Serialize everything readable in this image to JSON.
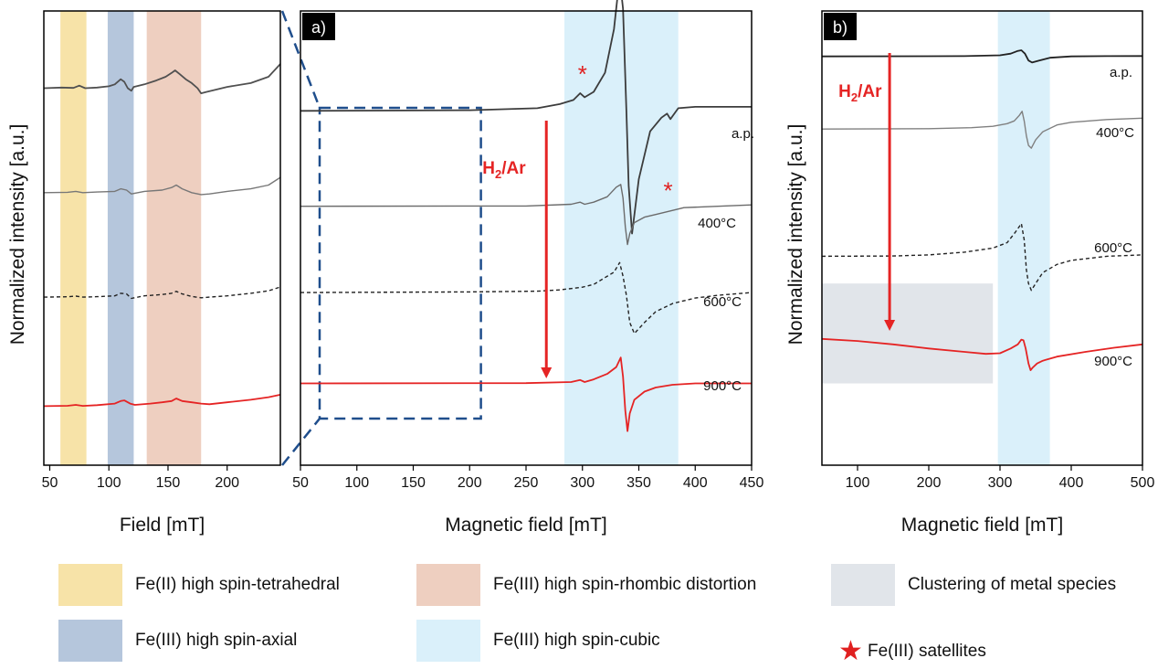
{
  "chart_data": [
    {
      "panel_label": "",
      "type": "line",
      "xlabel": "Field [mT]",
      "ylabel": "Normalized intensity [a.u.]",
      "xlim": [
        45,
        245
      ],
      "x_ticks": [
        50,
        100,
        150,
        200
      ],
      "y_ticks": "none",
      "grid": false,
      "bands": [
        {
          "from": 59,
          "to": 81,
          "color": "#f7e3a8",
          "class": "Fe(II) high spin-tetrahedral"
        },
        {
          "from": 99,
          "to": 121,
          "color": "#b5c6dc",
          "class": "Fe(III) high spin-axial"
        },
        {
          "from": 132,
          "to": 178,
          "color": "#eecfc0",
          "class": "Fe(III) high spin-rhombic distortion"
        }
      ],
      "series": [
        {
          "name": "a.p.",
          "style": "solid",
          "color": "#505050",
          "offset": 0.83,
          "x": [
            45,
            60,
            70,
            75,
            80,
            90,
            100,
            105,
            110,
            113,
            116,
            119,
            121,
            130,
            140,
            148,
            153,
            156,
            160,
            165,
            170,
            175,
            178,
            182,
            200,
            220,
            235,
            245
          ],
          "y": [
            0,
            0.005,
            0.002,
            0.02,
            0,
            0.005,
            0.015,
            0.03,
            0.07,
            0.05,
            0,
            -0.02,
            0.01,
            0.03,
            0.06,
            0.09,
            0.12,
            0.14,
            0.11,
            0.07,
            0.04,
            0.0,
            -0.04,
            -0.03,
            0.01,
            0.04,
            0.09,
            0.19
          ]
        },
        {
          "name": "400°C",
          "style": "solid",
          "color": "#777777",
          "offset": 0.6,
          "x": [
            45,
            65,
            72,
            78,
            90,
            105,
            110,
            115,
            119,
            130,
            145,
            153,
            157,
            162,
            170,
            178,
            185,
            200,
            220,
            235,
            245
          ],
          "y": [
            0,
            0.003,
            0.01,
            0,
            0.005,
            0.01,
            0.03,
            0.02,
            -0.01,
            0.01,
            0.02,
            0.04,
            0.06,
            0.03,
            0.0,
            -0.015,
            -0.01,
            0.01,
            0.03,
            0.06,
            0.12
          ]
        },
        {
          "name": "600°C",
          "style": "dashed",
          "color": "#222222",
          "offset": 0.37,
          "x": [
            45,
            65,
            72,
            78,
            90,
            105,
            110,
            115,
            119,
            130,
            145,
            153,
            157,
            162,
            170,
            178,
            185,
            200,
            220,
            235,
            245
          ],
          "y": [
            0,
            0.003,
            0.008,
            0,
            0.004,
            0.01,
            0.03,
            0.025,
            -0.01,
            0.01,
            0.02,
            0.03,
            0.045,
            0.025,
            0.005,
            -0.005,
            0,
            0.01,
            0.03,
            0.05,
            0.08
          ]
        },
        {
          "name": "900°C",
          "style": "solid",
          "color": "#e52424",
          "offset": 0.13,
          "x": [
            45,
            65,
            72,
            78,
            90,
            105,
            110,
            113,
            118,
            122,
            135,
            145,
            153,
            157,
            162,
            170,
            178,
            185,
            200,
            220,
            235,
            245
          ],
          "y": [
            0,
            0.003,
            0.01,
            0.002,
            0.008,
            0.02,
            0.04,
            0.045,
            0.02,
            0.01,
            0.02,
            0.03,
            0.04,
            0.06,
            0.04,
            0.03,
            0.02,
            0.015,
            0.03,
            0.05,
            0.07,
            0.09
          ]
        }
      ]
    },
    {
      "panel_label": "a)",
      "type": "line",
      "xlabel": "Magnetic field [mT]",
      "xlim": [
        50,
        450
      ],
      "x_ticks": [
        50,
        100,
        150,
        200,
        250,
        300,
        350,
        400,
        450
      ],
      "y_ticks": "none",
      "grid": false,
      "zoom_box": {
        "x_from": 67,
        "x_to": 210
      },
      "bands": [
        {
          "from": 284,
          "to": 385,
          "color": "#daf0fa",
          "class": "Fe(III) high spin-cubic"
        }
      ],
      "arrow": {
        "label": "H",
        "label_sub": "2",
        "label_suffix": "/Ar",
        "x": 268,
        "color": "#e52424"
      },
      "satellite_markers": [
        {
          "x": 300,
          "series": "a.p."
        },
        {
          "x": 376,
          "series": "400°C"
        }
      ],
      "series": [
        {
          "name": "a.p.",
          "label": "a.p.",
          "style": "solid",
          "color": "#3c3c3c",
          "offset": 0.78,
          "x": [
            50,
            200,
            260,
            280,
            292,
            298,
            302,
            310,
            320,
            328,
            333,
            336,
            339,
            341,
            344,
            350,
            360,
            370,
            375,
            378,
            385,
            400,
            420,
            450
          ],
          "y": [
            0,
            0.005,
            0.02,
            0.05,
            0.08,
            0.13,
            0.1,
            0.14,
            0.28,
            0.6,
            0.98,
            0.75,
            0.0,
            -0.55,
            -0.9,
            -0.5,
            -0.15,
            -0.05,
            -0.02,
            -0.06,
            0.02,
            0.03,
            0.03,
            0.03
          ]
        },
        {
          "name": "400°C",
          "label": "400°C",
          "style": "solid",
          "color": "#6b6b6b",
          "offset": 0.57,
          "x": [
            50,
            250,
            290,
            298,
            302,
            310,
            322,
            330,
            334,
            336,
            338,
            340,
            342,
            346,
            355,
            365,
            375,
            390,
            420,
            450
          ],
          "y": [
            0,
            0.002,
            0.015,
            0.03,
            0.015,
            0.03,
            0.07,
            0.14,
            0.16,
            0.06,
            -0.15,
            -0.28,
            -0.2,
            -0.12,
            -0.08,
            -0.06,
            -0.04,
            -0.01,
            0.0,
            0.01
          ]
        },
        {
          "name": "600°C",
          "label": "600°C",
          "style": "dashed",
          "color": "#222222",
          "offset": 0.38,
          "x": [
            50,
            200,
            260,
            280,
            300,
            310,
            320,
            328,
            333,
            336,
            339,
            342,
            346,
            355,
            365,
            380,
            400,
            420,
            450
          ],
          "y": [
            0,
            0.005,
            0.01,
            0.02,
            0.04,
            0.06,
            0.11,
            0.15,
            0.22,
            0.12,
            -0.02,
            -0.22,
            -0.3,
            -0.22,
            -0.14,
            -0.08,
            -0.04,
            -0.02,
            0.0
          ]
        },
        {
          "name": "900°C",
          "label": "900°C",
          "style": "solid",
          "color": "#e52424",
          "offset": 0.18,
          "x": [
            50,
            250,
            290,
            298,
            302,
            310,
            322,
            330,
            334,
            336,
            338,
            340,
            342,
            346,
            355,
            365,
            380,
            400,
            420,
            450
          ],
          "y": [
            0,
            0.002,
            0.01,
            0.025,
            0.01,
            0.03,
            0.07,
            0.12,
            0.19,
            0.05,
            -0.2,
            -0.35,
            -0.22,
            -0.12,
            -0.06,
            -0.03,
            -0.01,
            0.0,
            0.0,
            0.0
          ]
        }
      ]
    },
    {
      "panel_label": "b)",
      "type": "line",
      "xlabel": "Magnetic field [mT]",
      "ylabel": "Normalized intensity [a.u.]",
      "xlim": [
        50,
        500
      ],
      "x_ticks": [
        100,
        200,
        300,
        400,
        500
      ],
      "y_ticks": "none",
      "grid": false,
      "bands": [
        {
          "from": 297,
          "to": 370,
          "color": "#daf0fa",
          "class": "Fe(III) high spin-cubic"
        },
        {
          "from": 50,
          "to": 290,
          "color": "#e1e5ea",
          "class": "Clustering of metal species",
          "y_from": 0.18,
          "y_to": 0.4
        }
      ],
      "arrow": {
        "label": "H",
        "label_sub": "2",
        "label_suffix": "/Ar",
        "x": 145,
        "color": "#e52424"
      },
      "series": [
        {
          "name": "a.p.",
          "label": "a.p.",
          "style": "solid",
          "color": "#222222",
          "offset": 0.9,
          "x": [
            50,
            250,
            300,
            315,
            325,
            330,
            335,
            340,
            345,
            355,
            370,
            400,
            450,
            500
          ],
          "y": [
            0,
            0.002,
            0.008,
            0.02,
            0.04,
            0.045,
            0.02,
            -0.03,
            -0.045,
            -0.03,
            -0.01,
            0.0,
            0.002,
            0.003
          ]
        },
        {
          "name": "400°C",
          "label": "400°C",
          "style": "solid",
          "color": "#808080",
          "offset": 0.74,
          "x": [
            50,
            200,
            260,
            290,
            310,
            320,
            327,
            331,
            334,
            337,
            340,
            344,
            350,
            360,
            380,
            400,
            450,
            500
          ],
          "y": [
            0,
            0.003,
            0.01,
            0.02,
            0.04,
            0.06,
            0.1,
            0.13,
            0.06,
            -0.05,
            -0.12,
            -0.14,
            -0.08,
            -0.02,
            0.03,
            0.05,
            0.07,
            0.08
          ]
        },
        {
          "name": "600°C",
          "label": "600°C",
          "style": "dashed",
          "color": "#222222",
          "offset": 0.46,
          "x": [
            50,
            150,
            200,
            250,
            290,
            310,
            322,
            330,
            334,
            337,
            340,
            344,
            350,
            360,
            380,
            400,
            450,
            500
          ],
          "y": [
            0,
            0.002,
            0.01,
            0.03,
            0.06,
            0.1,
            0.18,
            0.24,
            0.12,
            -0.1,
            -0.2,
            -0.25,
            -0.2,
            -0.12,
            -0.06,
            -0.03,
            0.0,
            0.01
          ]
        },
        {
          "name": "900°C",
          "label": "900°C",
          "style": "solid",
          "color": "#e52424",
          "offset": 0.26,
          "x": [
            50,
            100,
            150,
            200,
            250,
            280,
            300,
            315,
            325,
            330,
            333,
            336,
            340,
            343,
            346,
            352,
            360,
            380,
            420,
            460,
            500
          ],
          "y": [
            0.06,
            0.045,
            0.02,
            -0.01,
            -0.035,
            -0.05,
            -0.045,
            -0.01,
            0.02,
            0.055,
            0.05,
            -0.01,
            -0.12,
            -0.17,
            -0.15,
            -0.12,
            -0.1,
            -0.07,
            -0.035,
            -0.005,
            0.02
          ]
        }
      ]
    }
  ],
  "legend": [
    {
      "label": "Fe(II) high spin-tetrahedral",
      "color": "#f7e3a8"
    },
    {
      "label": "Fe(III) high spin-axial",
      "color": "#b5c6dc"
    },
    {
      "label": "Fe(III) high spin-rhombic distortion",
      "color": "#eecfc0"
    },
    {
      "label": "Fe(III) high spin-cubic",
      "color": "#daf0fa"
    },
    {
      "label": "Clustering of metal species",
      "color": "#e1e5ea"
    },
    {
      "label": "Fe(III) satellites",
      "marker": "★",
      "color": "#e02020"
    }
  ]
}
